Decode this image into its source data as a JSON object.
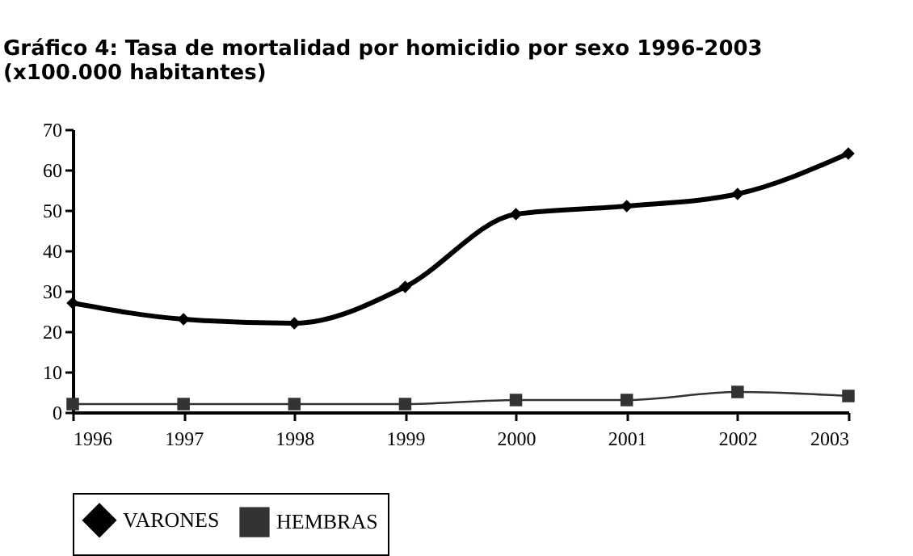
{
  "chart_data": {
    "type": "line",
    "title": "Gráfico 4: Tasa de mortalidad por homicidio por sexo 1996-2003",
    "subtitle": "(x100.000 habitantes)",
    "x": [
      1996,
      1997,
      1998,
      1999,
      2000,
      2001,
      2002,
      2003
    ],
    "series": [
      {
        "name": "VARONES",
        "color": "#000000",
        "marker": "diamond",
        "values": [
          27,
          23,
          22,
          31,
          49,
          51,
          54,
          64
        ]
      },
      {
        "name": "HEMBRAS",
        "color": "#333333",
        "marker": "square",
        "values": [
          2,
          2,
          2,
          2,
          3,
          3,
          5,
          4
        ]
      }
    ],
    "xlim": [
      1996,
      2003
    ],
    "xticks": [
      1996,
      1997,
      1998,
      1999,
      2000,
      2001,
      2002,
      2003
    ],
    "ylim": [
      0,
      70
    ],
    "yticks": [
      0,
      10,
      20,
      30,
      40,
      50,
      60,
      70
    ],
    "grid": false,
    "legend": "bottom",
    "line_style": "solid"
  }
}
